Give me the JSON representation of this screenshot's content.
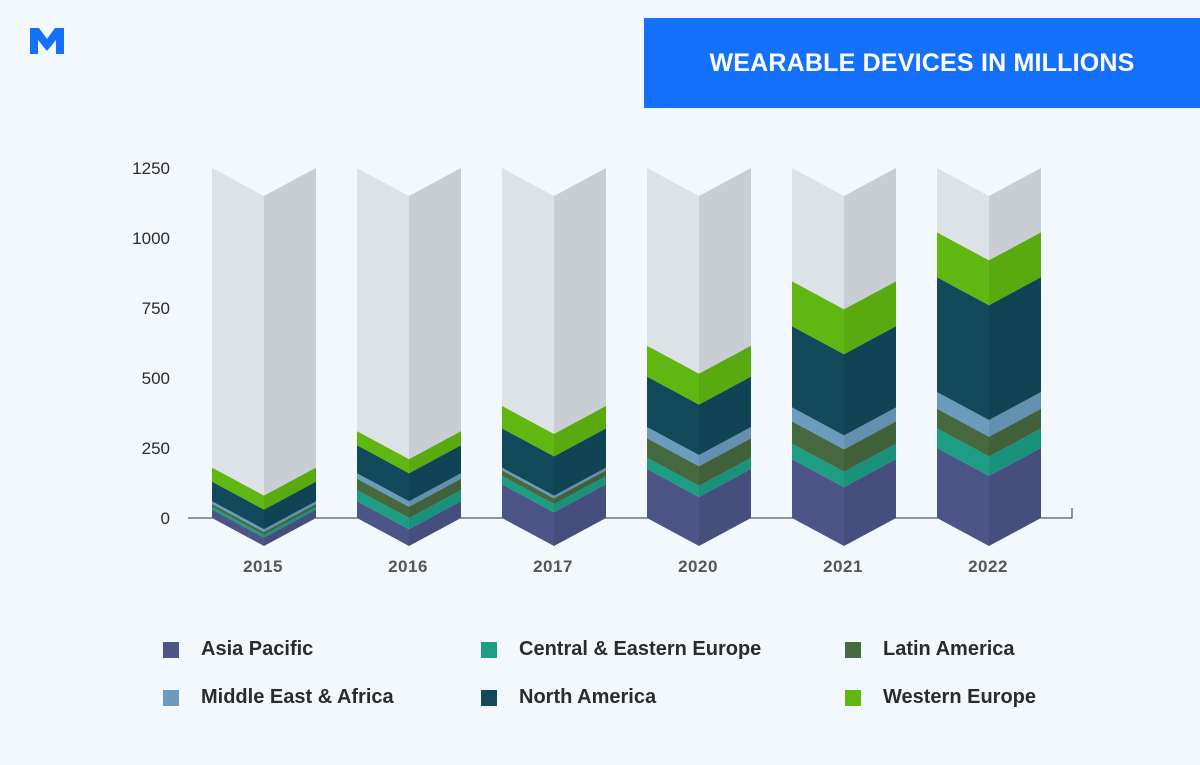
{
  "title": "WEARABLE DEVICES IN MILLIONS",
  "colors": {
    "brand": "#1570fb",
    "background": "#f3f8fd",
    "ghost_front": "#dde2e7",
    "ghost_side": "#c9ced4"
  },
  "chart_data": {
    "type": "bar",
    "stacked": true,
    "title": "WEARABLE DEVICES IN MILLIONS",
    "categories": [
      "2015",
      "2016",
      "2017",
      "2020",
      "2021",
      "2022"
    ],
    "ylim": [
      0,
      1250
    ],
    "yticks": [
      0,
      250,
      500,
      750,
      1000,
      1250
    ],
    "ytick_labels": [
      "0",
      "250",
      "500",
      "750",
      "1000",
      "1250"
    ],
    "series": [
      {
        "name": "Asia Pacific",
        "color": "#4c5488",
        "values": [
          30,
          60,
          120,
          175,
          210,
          250
        ]
      },
      {
        "name": "Central & Eastern Europe",
        "color": "#1c9d84",
        "values": [
          10,
          40,
          30,
          40,
          55,
          70
        ]
      },
      {
        "name": "Latin America",
        "color": "#46693f",
        "values": [
          10,
          40,
          20,
          70,
          80,
          70
        ]
      },
      {
        "name": "Middle East & Africa",
        "color": "#6b9bbd",
        "values": [
          10,
          20,
          10,
          40,
          50,
          60
        ]
      },
      {
        "name": "North America",
        "color": "#124a5b",
        "values": [
          70,
          100,
          140,
          180,
          290,
          410
        ]
      },
      {
        "name": "Western Europe",
        "color": "#60b712",
        "values": [
          50,
          50,
          80,
          110,
          160,
          160
        ]
      }
    ]
  }
}
